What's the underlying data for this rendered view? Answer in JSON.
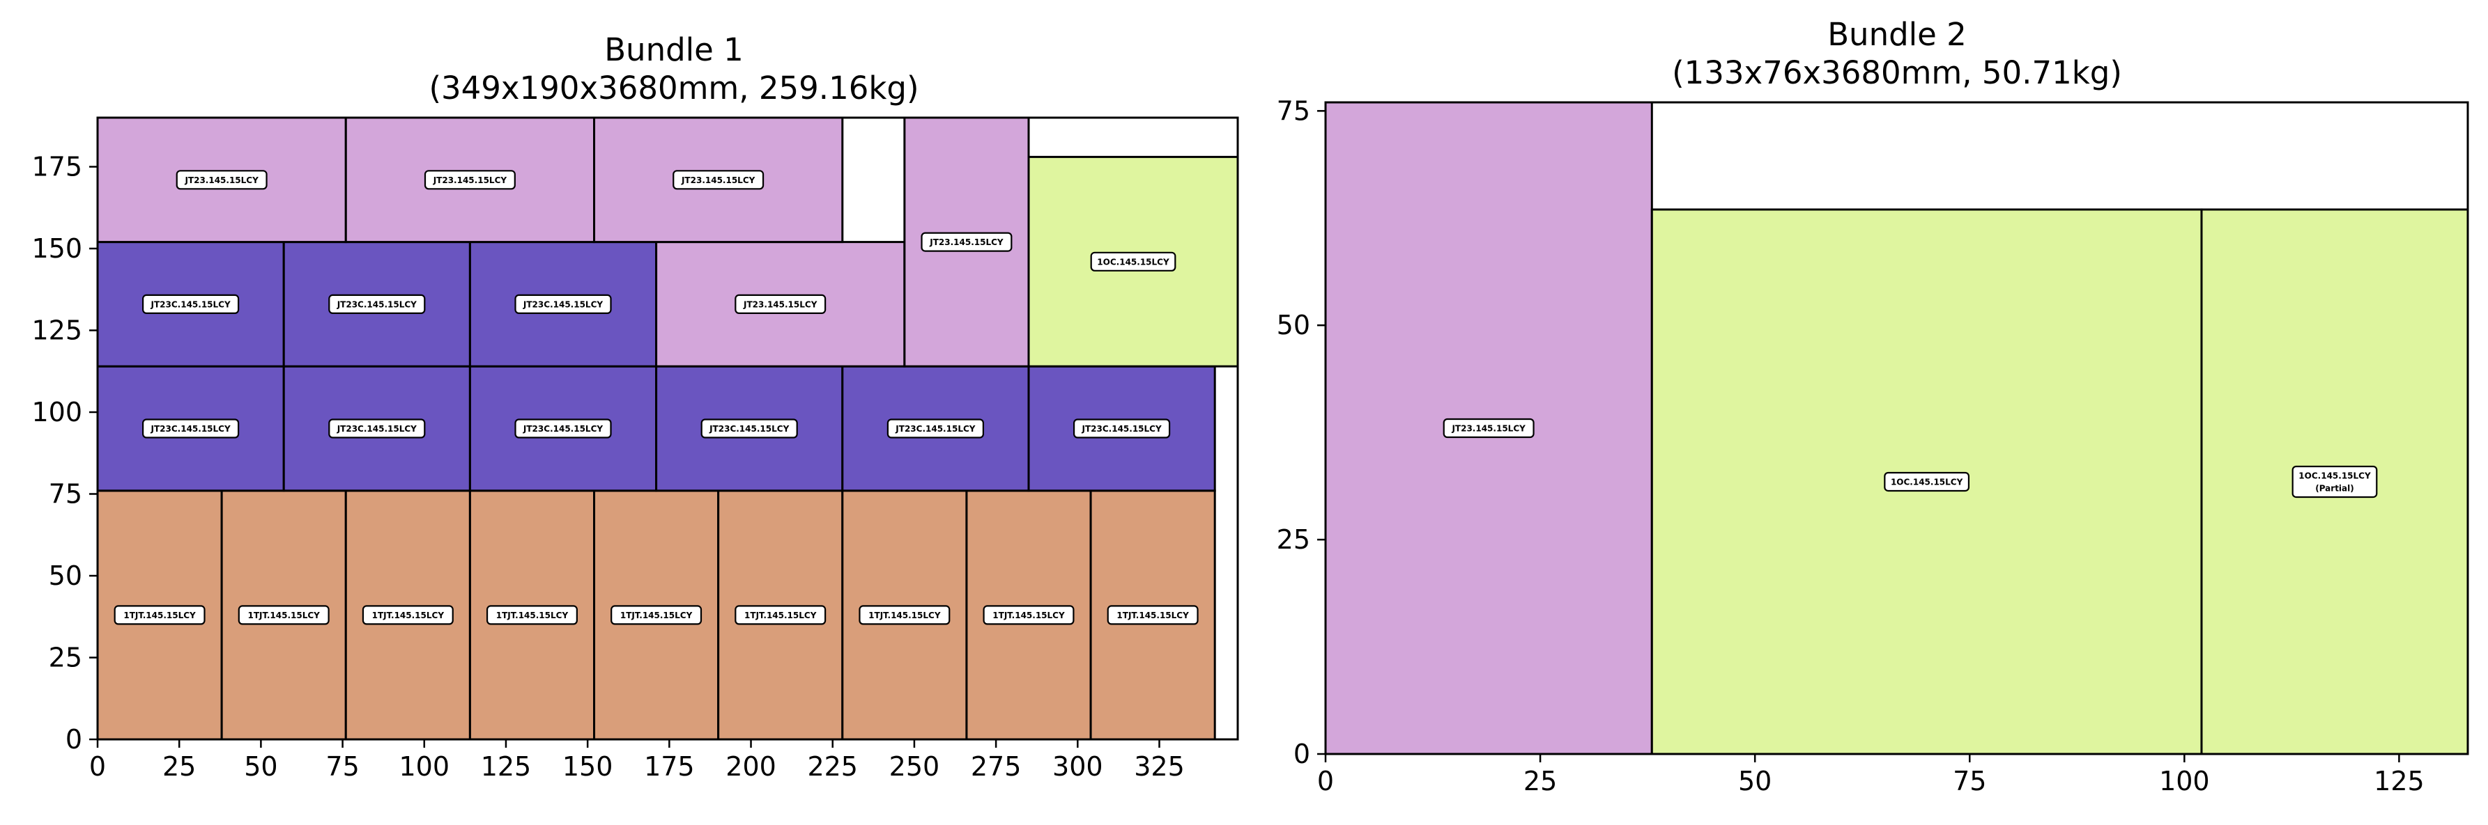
{
  "chart_data": [
    {
      "type": "packing-layout",
      "title": "Bundle 1",
      "subtitle": "(349x190x3680mm, 259.16kg)",
      "xlim": [
        0,
        349
      ],
      "ylim": [
        0,
        190
      ],
      "xticks": [
        0,
        25,
        50,
        75,
        100,
        125,
        150,
        175,
        200,
        225,
        250,
        275,
        300,
        325
      ],
      "yticks": [
        0,
        25,
        50,
        75,
        100,
        125,
        150,
        175
      ],
      "colors": {
        "1TJT.145.15LCY": "#d99e7a",
        "JT23C.145.15LCY": "#6a55c0",
        "JT23.145.15LCY": "#d3a6da",
        "1OC.145.15LCY": "#dff59f"
      },
      "pieces": [
        {
          "label": "1TJT.145.15LCY",
          "x": 0,
          "y": 0,
          "w": 38,
          "h": 76
        },
        {
          "label": "1TJT.145.15LCY",
          "x": 38,
          "y": 0,
          "w": 38,
          "h": 76
        },
        {
          "label": "1TJT.145.15LCY",
          "x": 76,
          "y": 0,
          "w": 38,
          "h": 76
        },
        {
          "label": "1TJT.145.15LCY",
          "x": 114,
          "y": 0,
          "w": 38,
          "h": 76
        },
        {
          "label": "1TJT.145.15LCY",
          "x": 152,
          "y": 0,
          "w": 38,
          "h": 76
        },
        {
          "label": "1TJT.145.15LCY",
          "x": 190,
          "y": 0,
          "w": 38,
          "h": 76
        },
        {
          "label": "1TJT.145.15LCY",
          "x": 228,
          "y": 0,
          "w": 38,
          "h": 76
        },
        {
          "label": "1TJT.145.15LCY",
          "x": 266,
          "y": 0,
          "w": 38,
          "h": 76
        },
        {
          "label": "1TJT.145.15LCY",
          "x": 304,
          "y": 0,
          "w": 38,
          "h": 76
        },
        {
          "label": "JT23C.145.15LCY",
          "x": 0,
          "y": 76,
          "w": 57,
          "h": 38
        },
        {
          "label": "JT23C.145.15LCY",
          "x": 57,
          "y": 76,
          "w": 57,
          "h": 38
        },
        {
          "label": "JT23C.145.15LCY",
          "x": 114,
          "y": 76,
          "w": 57,
          "h": 38
        },
        {
          "label": "JT23C.145.15LCY",
          "x": 171,
          "y": 76,
          "w": 57,
          "h": 38
        },
        {
          "label": "JT23C.145.15LCY",
          "x": 228,
          "y": 76,
          "w": 57,
          "h": 38
        },
        {
          "label": "JT23C.145.15LCY",
          "x": 285,
          "y": 76,
          "w": 57,
          "h": 38
        },
        {
          "label": "JT23C.145.15LCY",
          "x": 0,
          "y": 114,
          "w": 57,
          "h": 38
        },
        {
          "label": "JT23C.145.15LCY",
          "x": 57,
          "y": 114,
          "w": 57,
          "h": 38
        },
        {
          "label": "JT23C.145.15LCY",
          "x": 114,
          "y": 114,
          "w": 57,
          "h": 38
        },
        {
          "label": "JT23.145.15LCY",
          "x": 171,
          "y": 114,
          "w": 76,
          "h": 38
        },
        {
          "label": "JT23.145.15LCY",
          "x": 247,
          "y": 114,
          "w": 38,
          "h": 76
        },
        {
          "label": "JT23.145.15LCY",
          "x": 0,
          "y": 152,
          "w": 76,
          "h": 38
        },
        {
          "label": "JT23.145.15LCY",
          "x": 76,
          "y": 152,
          "w": 76,
          "h": 38
        },
        {
          "label": "JT23.145.15LCY",
          "x": 152,
          "y": 152,
          "w": 76,
          "h": 38
        },
        {
          "label": "1OC.145.15LCY",
          "x": 285,
          "y": 114,
          "w": 64,
          "h": 64
        }
      ]
    },
    {
      "type": "packing-layout",
      "title": "Bundle 2",
      "subtitle": "(133x76x3680mm, 50.71kg)",
      "xlim": [
        0,
        133
      ],
      "ylim": [
        0,
        76
      ],
      "xticks": [
        0,
        25,
        50,
        75,
        100,
        125
      ],
      "yticks": [
        0,
        25,
        50,
        75
      ],
      "colors": {
        "JT23.145.15LCY": "#d3a6da",
        "1OC.145.15LCY": "#dff59f"
      },
      "pieces": [
        {
          "label": "JT23.145.15LCY",
          "x": 0,
          "y": 0,
          "w": 38,
          "h": 76
        },
        {
          "label": "1OC.145.15LCY",
          "x": 38,
          "y": 0,
          "w": 64,
          "h": 63.5
        },
        {
          "label": "1OC.145.15LCY",
          "sublabel": "(Partial)",
          "x": 102,
          "y": 0,
          "w": 31,
          "h": 63.5
        }
      ]
    }
  ]
}
